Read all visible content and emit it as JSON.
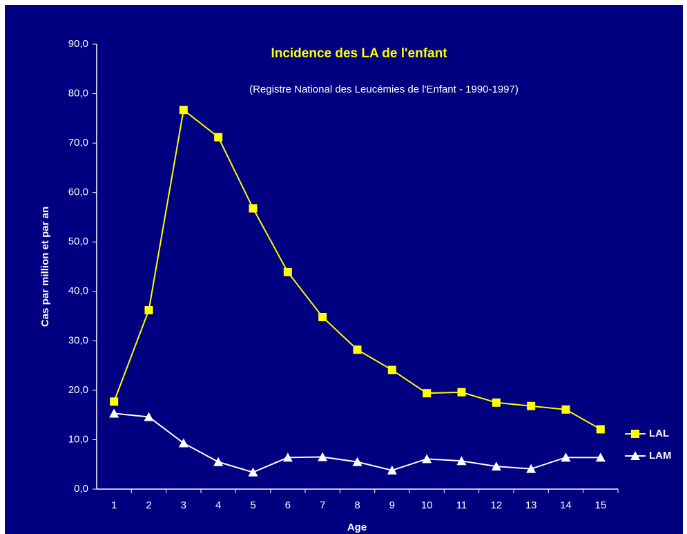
{
  "chart_data": {
    "type": "line",
    "title": "Incidence des LA de l'enfant",
    "subtitle": "(Registre National des Leucémies de l'Enfant - 1990-1997)",
    "x_label": "Age",
    "y_label": "Cas par million et par an",
    "categories": [
      "1",
      "2",
      "3",
      "4",
      "5",
      "6",
      "7",
      "8",
      "9",
      "10",
      "11",
      "12",
      "13",
      "14",
      "15"
    ],
    "series": [
      {
        "name": "LAL",
        "color": "#ffff00",
        "marker": "square",
        "values": [
          17.7,
          36.2,
          76.7,
          71.2,
          56.8,
          43.9,
          34.8,
          28.2,
          24.1,
          19.4,
          19.6,
          17.5,
          16.8,
          16.1,
          12.1
        ]
      },
      {
        "name": "LAM",
        "color": "#ffffff",
        "marker": "triangle",
        "values": [
          15.3,
          14.6,
          9.3,
          5.5,
          3.4,
          6.4,
          6.5,
          5.5,
          3.8,
          6.1,
          5.7,
          4.6,
          4.1,
          6.4,
          6.4
        ]
      }
    ],
    "ylim": [
      0,
      90
    ],
    "yticks": [
      {
        "value": 0,
        "label": "0,0"
      },
      {
        "value": 10,
        "label": "10,0"
      },
      {
        "value": 20,
        "label": "20,0"
      },
      {
        "value": 30,
        "label": "30,0"
      },
      {
        "value": 40,
        "label": "40,0"
      },
      {
        "value": 50,
        "label": "50,0"
      },
      {
        "value": 60,
        "label": "60,0"
      },
      {
        "value": 70,
        "label": "70,0"
      },
      {
        "value": 80,
        "label": "80,0"
      },
      {
        "value": 90,
        "label": "90,0"
      }
    ],
    "grid": false,
    "legend": "right"
  }
}
